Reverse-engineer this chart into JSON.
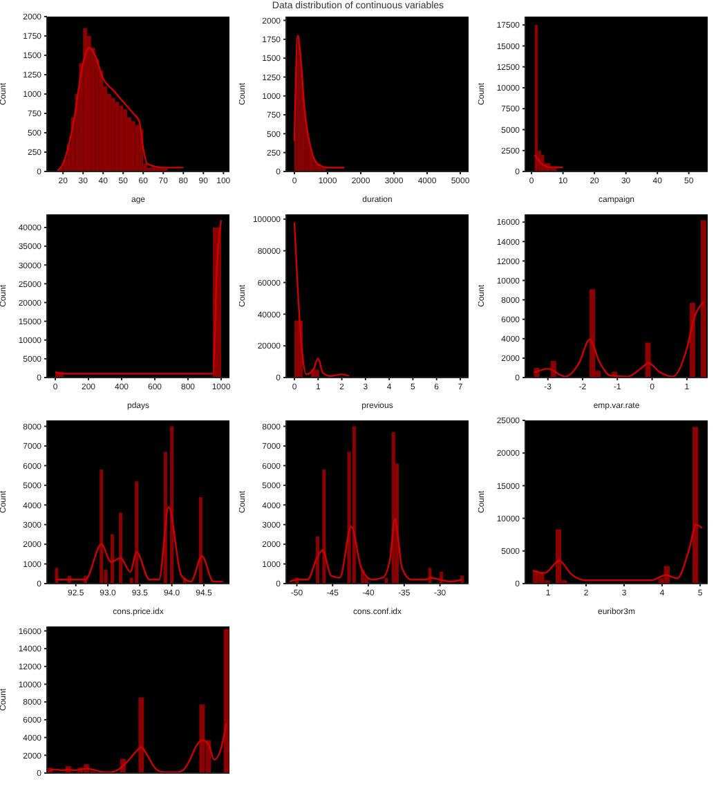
{
  "chart_data": [
    {
      "type": "histogram",
      "xlabel": "age",
      "ylabel": "Count",
      "xlim": [
        12,
        103
      ],
      "xticks": [
        20,
        30,
        40,
        50,
        60,
        70,
        80,
        90,
        100
      ],
      "ylim": [
        0,
        2000
      ],
      "yticks": [
        0,
        250,
        500,
        750,
        1000,
        1250,
        1500,
        1750,
        2000
      ],
      "series": [
        {
          "type": "histogram",
          "color": "#8b0000",
          "bins": [
            16,
            18,
            20,
            22,
            24,
            26,
            28,
            30,
            32,
            34,
            36,
            38,
            40,
            42,
            44,
            46,
            48,
            50,
            52,
            54,
            56,
            58,
            60,
            62,
            64,
            66,
            68,
            70,
            72,
            74,
            76,
            78,
            80,
            82,
            84,
            86,
            88,
            90,
            92,
            94,
            96,
            98
          ],
          "values": [
            0,
            50,
            150,
            350,
            700,
            1000,
            1400,
            1850,
            1750,
            1600,
            1450,
            1300,
            1100,
            1000,
            950,
            900,
            850,
            800,
            700,
            650,
            600,
            550,
            100,
            50,
            50,
            50,
            50,
            50,
            0,
            0,
            0,
            0,
            0,
            0,
            0,
            0,
            0,
            0,
            0,
            0,
            0
          ]
        },
        {
          "type": "line",
          "color": "#d00000",
          "x": [
            17,
            20,
            25,
            30,
            33,
            36,
            40,
            45,
            50,
            55,
            58,
            60,
            62,
            70,
            80
          ],
          "values": [
            0,
            100,
            600,
            1400,
            1600,
            1500,
            1200,
            1050,
            900,
            750,
            650,
            300,
            100,
            50,
            50
          ]
        }
      ]
    },
    {
      "type": "histogram",
      "title": "Data distribution of continuous variables",
      "xlabel": "duration",
      "ylabel": "Count",
      "xlim": [
        -250,
        5250
      ],
      "xticks": [
        0,
        1000,
        2000,
        3000,
        4000,
        5000
      ],
      "ylim": [
        0,
        2050
      ],
      "yticks": [
        0,
        250,
        500,
        750,
        1000,
        1250,
        1500,
        1750,
        2000
      ],
      "series": [
        {
          "type": "histogram",
          "color": "#8b0000",
          "bins": [
            0,
            50,
            100,
            150,
            200,
            250,
            300,
            350,
            400,
            450,
            500,
            550,
            600,
            650,
            700,
            750,
            800,
            850,
            900,
            950,
            1000
          ],
          "values": [
            500,
            1500,
            1800,
            1600,
            1300,
            1050,
            800,
            600,
            450,
            350,
            250,
            200,
            150,
            100,
            100,
            100,
            50,
            50,
            50,
            null
          ]
        },
        {
          "type": "line",
          "color": "#d00000",
          "x": [
            0,
            100,
            200,
            300,
            500,
            700,
            1000,
            1500
          ],
          "values": [
            400,
            1800,
            1450,
            850,
            300,
            100,
            50,
            50
          ]
        }
      ]
    },
    {
      "type": "histogram",
      "xlabel": "campaign",
      "ylabel": "Count",
      "xlim": [
        -2,
        56
      ],
      "xticks": [
        0,
        10,
        20,
        30,
        40,
        50
      ],
      "ylim": [
        0,
        18500
      ],
      "yticks": [
        0,
        2500,
        5000,
        7500,
        10000,
        12500,
        15000,
        17500
      ],
      "series": [
        {
          "type": "histogram",
          "color": "#8b0000",
          "bins": [
            1,
            2,
            3,
            4,
            5,
            6,
            7,
            8
          ],
          "values": [
            17500,
            2500,
            2000,
            1000,
            1000,
            500,
            500
          ]
        },
        {
          "type": "line",
          "color": "#d00000",
          "x": [
            1,
            3,
            6,
            10
          ],
          "values": [
            2000,
            1000,
            500,
            500
          ]
        }
      ]
    },
    {
      "type": "histogram",
      "xlabel": "pdays",
      "ylabel": "Count",
      "xlim": [
        -50,
        1050
      ],
      "xticks": [
        0,
        200,
        400,
        600,
        800,
        1000
      ],
      "ylim": [
        0,
        43500
      ],
      "yticks": [
        0,
        5000,
        10000,
        15000,
        20000,
        25000,
        30000,
        35000,
        40000
      ],
      "series": [
        {
          "type": "histogram",
          "color": "#8b0000",
          "bins": [
            0,
            50,
            100,
            150,
            200,
            250,
            300,
            350,
            400,
            450,
            500,
            550,
            600,
            650,
            700,
            750,
            800,
            850,
            900,
            950,
            1000
          ],
          "values": [
            1500,
            0,
            0,
            0,
            0,
            0,
            0,
            0,
            0,
            0,
            0,
            0,
            0,
            0,
            0,
            0,
            0,
            0,
            0,
            40000
          ]
        },
        {
          "type": "line",
          "color": "#d00000",
          "x": [
            0,
            50,
            950,
            975,
            1000
          ],
          "values": [
            1500,
            1000,
            1000,
            30000,
            42000
          ]
        }
      ]
    },
    {
      "type": "histogram",
      "xlabel": "previous",
      "ylabel": "Count",
      "xlim": [
        -0.35,
        7.35
      ],
      "xticks": [
        0,
        1,
        2,
        3,
        4,
        5,
        6,
        7
      ],
      "ylim": [
        0,
        103000
      ],
      "yticks": [
        0,
        20000,
        40000,
        60000,
        80000,
        100000
      ],
      "series": [
        {
          "type": "histogram",
          "color": "#8b0000",
          "bins": [
            0,
            0.35,
            0.7,
            1.05,
            1.4,
            1.75,
            2.1
          ],
          "values": [
            36000,
            0,
            5000,
            0,
            0,
            null
          ]
        },
        {
          "type": "line",
          "color": "#d00000",
          "x": [
            0,
            0.25,
            0.5,
            0.8,
            1,
            1.2,
            1.5,
            2,
            2.3
          ],
          "values": [
            98000,
            30000,
            2000,
            5000,
            12000,
            3000,
            1000,
            2000,
            1000
          ]
        }
      ]
    },
    {
      "type": "histogram",
      "xlabel": "emp.var.rate",
      "ylabel": "Count",
      "xlim": [
        -3.65,
        1.6
      ],
      "xticks": [
        -3,
        -2,
        -1,
        0,
        1
      ],
      "ylim": [
        0,
        16800
      ],
      "yticks": [
        0,
        2000,
        4000,
        6000,
        8000,
        10000,
        12000,
        14000,
        16000
      ],
      "series": [
        {
          "type": "histogram",
          "color": "#8b0000",
          "bins": [
            -3.4,
            -3.24,
            -3.08,
            -2.92,
            -2.76,
            -2.6,
            -2.44,
            -2.28,
            -2.12,
            -1.96,
            -1.8,
            -1.64,
            -1.48,
            -1.32,
            -1.16,
            -1.0,
            -0.84,
            -0.68,
            -0.52,
            -0.36,
            -0.2,
            -0.04,
            0.12,
            0.28,
            0.44,
            0.6,
            0.76,
            0.92,
            1.08,
            1.24,
            1.4,
            1.56
          ],
          "values": [
            1000,
            0,
            0,
            1700,
            0,
            0,
            0,
            0,
            0,
            0,
            9100,
            700,
            0,
            0,
            600,
            0,
            0,
            0,
            0,
            0,
            3600,
            0,
            0,
            0,
            0,
            0,
            0,
            0,
            7700,
            0,
            16200
          ]
        },
        {
          "type": "line",
          "color": "#d00000",
          "x": [
            -3.4,
            -3.0,
            -2.5,
            -2.1,
            -1.8,
            -1.5,
            -1.2,
            -0.7,
            -0.3,
            -0.1,
            0.2,
            0.6,
            1.0,
            1.2,
            1.5
          ],
          "values": [
            500,
            900,
            100,
            1500,
            3900,
            1500,
            200,
            100,
            1000,
            1500,
            600,
            100,
            3000,
            6000,
            7800
          ]
        }
      ]
    },
    {
      "type": "bar",
      "xlabel": "cons.price.idx",
      "ylabel": "Count",
      "xlim": [
        92.05,
        94.9
      ],
      "xticks": [
        92.5,
        {
          "value": 93,
          "label": "93.0"
        },
        93.5,
        {
          "value": 94,
          "label": "94.0"
        },
        94.5
      ],
      "ylim": [
        0,
        8300
      ],
      "yticks": [
        0,
        1000,
        2000,
        3000,
        4000,
        5000,
        6000,
        7000,
        8000
      ],
      "series": [
        {
          "type": "bar",
          "color": "#8b0000",
          "x": [
            92.2,
            92.4,
            92.65,
            92.9,
            92.97,
            93.07,
            93.2,
            93.37,
            93.45,
            93.9,
            94.0,
            94.2,
            94.45
          ],
          "values": [
            800,
            400,
            400,
            5800,
            700,
            2500,
            3600,
            300,
            5200,
            6700,
            8000,
            300,
            4400
          ]
        },
        {
          "type": "line",
          "color": "#d00000",
          "x": [
            92.2,
            92.45,
            92.65,
            92.9,
            93.05,
            93.2,
            93.35,
            93.45,
            93.65,
            93.8,
            93.95,
            94.15,
            94.3,
            94.47,
            94.65,
            94.8
          ],
          "values": [
            200,
            200,
            200,
            2000,
            1100,
            1300,
            600,
            1600,
            200,
            200,
            3900,
            400,
            100,
            1400,
            100,
            100
          ]
        }
      ]
    },
    {
      "type": "bar",
      "xlabel": "cons.conf.idx",
      "ylabel": "Count",
      "xlim": [
        -51.5,
        -26
      ],
      "xticks": [
        -50,
        -45,
        -40,
        -35,
        -30
      ],
      "ylim": [
        0,
        8300
      ],
      "yticks": [
        0,
        1000,
        2000,
        3000,
        4000,
        5000,
        6000,
        7000,
        8000
      ],
      "series": [
        {
          "type": "bar",
          "color": "#8b0000",
          "x": [
            -50,
            -47.1,
            -46.2,
            -42.7,
            -42,
            -40.8,
            -40.3,
            -37.5,
            -36.5,
            -36,
            -31.4,
            -29.8,
            -26.9
          ],
          "values": [
            300,
            2400,
            5800,
            6700,
            8000,
            700,
            300,
            300,
            7700,
            6100,
            800,
            600,
            400
          ]
        },
        {
          "type": "line",
          "color": "#d00000",
          "x": [
            -51,
            -50,
            -48.5,
            -47.2,
            -46.4,
            -45.2,
            -44,
            -42.4,
            -41,
            -39.5,
            -38,
            -37,
            -36.3,
            -35.3,
            -34,
            -32,
            -31.3,
            -30,
            -28.5,
            -27
          ],
          "values": [
            100,
            200,
            200,
            1300,
            1700,
            400,
            300,
            2900,
            800,
            200,
            300,
            1200,
            3300,
            800,
            200,
            200,
            300,
            200,
            100,
            200
          ]
        }
      ]
    },
    {
      "type": "histogram",
      "xlabel": "euribor3m",
      "ylabel": "Count",
      "xlim": [
        0.4,
        5.2
      ],
      "xticks": [
        1,
        2,
        3,
        4,
        5
      ],
      "ylim": [
        0,
        25000
      ],
      "yticks": [
        0,
        5000,
        10000,
        15000,
        20000,
        25000
      ],
      "series": [
        {
          "type": "histogram",
          "color": "#8b0000",
          "bins": [
            0.6,
            0.75,
            0.9,
            1.05,
            1.2,
            1.35,
            1.5,
            1.65,
            1.8,
            1.95,
            2.1,
            2.25,
            2.4,
            2.55,
            2.7,
            2.85,
            3,
            3.15,
            3.3,
            3.45,
            3.6,
            3.75,
            3.9,
            4.05,
            4.2,
            4.35,
            4.5,
            4.65,
            4.8,
            4.95
          ],
          "values": [
            2000,
            1800,
            500,
            0,
            8300,
            500,
            0,
            0,
            0,
            0,
            0,
            0,
            0,
            0,
            0,
            0,
            0,
            0,
            0,
            0,
            0,
            0,
            800,
            2700,
            0,
            0,
            0,
            0,
            24000
          ]
        },
        {
          "type": "line",
          "color": "#d00000",
          "x": [
            0.6,
            0.9,
            1.3,
            1.6,
            2,
            2.5,
            3,
            3.5,
            3.7,
            4.1,
            4.4,
            4.7,
            4.9,
            5.05
          ],
          "values": [
            2000,
            1600,
            3500,
            1500,
            500,
            500,
            500,
            500,
            500,
            1300,
            800,
            5000,
            9000,
            8500
          ]
        }
      ]
    },
    {
      "type": "bar",
      "ylabel": "Count",
      "tick_labels": "y",
      "categories": [
        null,
        null,
        null,
        null,
        null,
        null,
        null,
        null,
        null,
        null,
        null,
        null,
        null,
        null,
        null,
        null,
        null,
        null,
        null,
        null,
        null,
        null,
        null,
        null,
        null,
        null,
        null,
        null,
        null,
        null
      ],
      "ylim": [
        0,
        16500
      ],
      "yticks": [
        0,
        2000,
        4000,
        6000,
        8000,
        10000,
        12000,
        14000,
        16000
      ],
      "series": [
        {
          "type": "bar",
          "color": "#8b0000",
          "values": [
            600,
            0,
            0,
            800,
            0,
            600,
            1000,
            200,
            0,
            0,
            0,
            0,
            1600,
            0,
            0,
            8500,
            0,
            0,
            0,
            0,
            0,
            0,
            0,
            0,
            0,
            7700,
            3700,
            0,
            0,
            16200
          ]
        },
        {
          "type": "line",
          "color": "#d00000",
          "values": [
            300,
            400,
            300,
            400,
            300,
            400,
            500,
            400,
            200,
            100,
            100,
            300,
            800,
            1500,
            2300,
            2900,
            2000,
            800,
            200,
            100,
            100,
            100,
            400,
            1500,
            3000,
            3700,
            3300,
            1500,
            2500,
            5600
          ]
        }
      ]
    }
  ]
}
